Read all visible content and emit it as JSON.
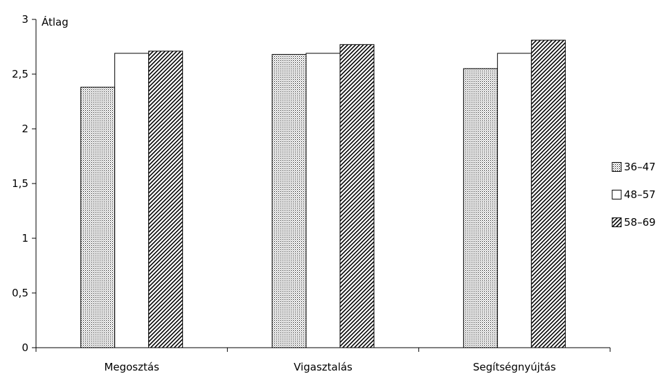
{
  "chart_data": {
    "type": "bar",
    "ylabel": "Átlag",
    "xlabel": "",
    "categories": [
      "Megosztás",
      "Vigasztalás",
      "Segítségnyújtás"
    ],
    "series": [
      {
        "name": "36–47",
        "values": [
          2.38,
          2.68,
          2.55
        ],
        "pattern": "dots",
        "color": "#000000"
      },
      {
        "name": "48–57",
        "values": [
          2.69,
          2.69,
          2.69
        ],
        "pattern": "none",
        "color": "#000000"
      },
      {
        "name": "58–69",
        "values": [
          2.71,
          2.77,
          2.81
        ],
        "pattern": "hatch",
        "color": "#000000"
      }
    ],
    "ylim": [
      0,
      3
    ],
    "yticks": [
      0,
      0.5,
      1,
      1.5,
      2,
      2.5,
      3
    ],
    "ytick_labels": [
      "0",
      "0,5",
      "1",
      "1,5",
      "2",
      "2,5",
      "3"
    ],
    "grid": false,
    "legend_position": "right"
  }
}
